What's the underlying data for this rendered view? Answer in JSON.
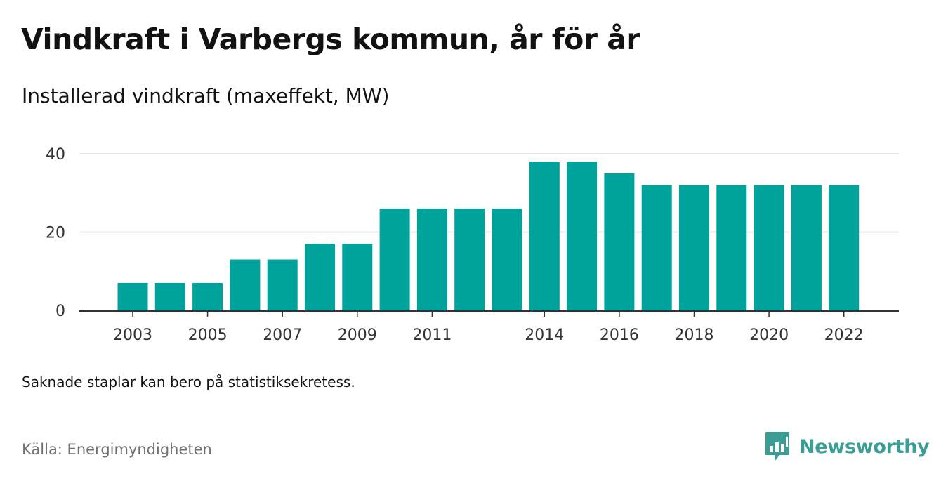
{
  "header": {
    "title": "Vindkraft i Varbergs kommun, år för år",
    "subtitle": "Installerad vindkraft (maxeffekt, MW)"
  },
  "footer": {
    "note": "Saknade staplar kan bero på statistiksekretess.",
    "source": "Källa: Energimyndigheten",
    "brand": "Newsworthy"
  },
  "colors": {
    "bar": "#00a39b",
    "grid": "#dddddd",
    "axis": "#333333",
    "brand": "#3a9e95"
  },
  "chart_data": {
    "type": "bar",
    "title": "Vindkraft i Varbergs kommun, år för år",
    "subtitle": "Installerad vindkraft (maxeffekt, MW)",
    "xlabel": "",
    "ylabel": "",
    "categories": [
      "2003",
      "2004",
      "2005",
      "2006",
      "2007",
      "2008",
      "2009",
      "2010",
      "2011",
      "2012",
      "2013",
      "2014",
      "2015",
      "2016",
      "2017",
      "2018",
      "2019",
      "2020",
      "2021",
      "2022"
    ],
    "values": [
      7,
      7,
      7,
      13,
      13,
      17,
      17,
      26,
      26,
      26,
      26,
      38,
      38,
      35,
      32,
      32,
      32,
      32,
      32,
      32
    ],
    "x_tick_labels": [
      "2003",
      "2005",
      "2007",
      "2009",
      "2011",
      "2014",
      "2016",
      "2018",
      "2020",
      "2022"
    ],
    "y_ticks": [
      0,
      20,
      40
    ],
    "y_tick_labels": [
      "0",
      "20",
      "40"
    ],
    "ylim": [
      0,
      40
    ],
    "grid": true,
    "legend": "none"
  }
}
